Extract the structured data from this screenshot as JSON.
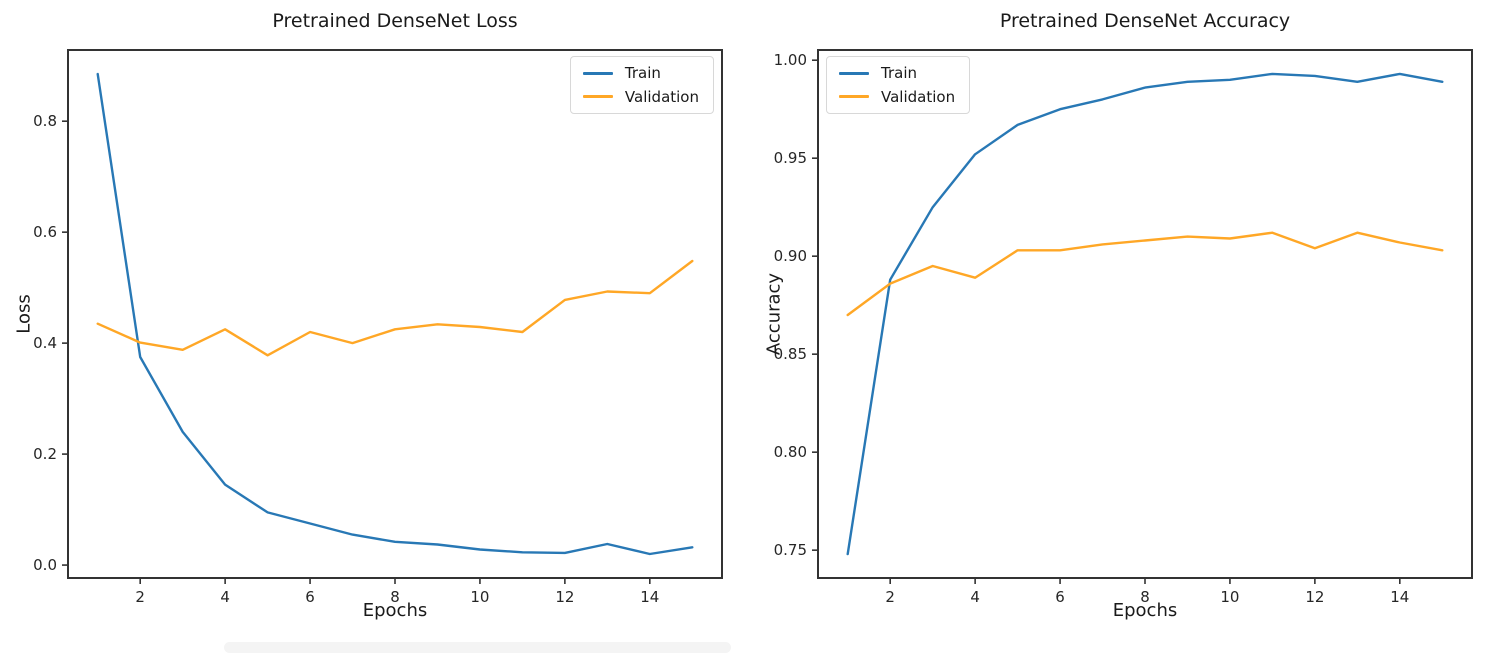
{
  "figure": {
    "background": "#ffffff"
  },
  "colors": {
    "train": "#2878b5",
    "validation": "#ffa726",
    "axis": "#333333",
    "tick_text": "#262626"
  },
  "chart_data": [
    {
      "type": "line",
      "title": "Pretrained DenseNet Loss",
      "xlabel": "Epochs",
      "ylabel": "Loss",
      "grid": false,
      "legend_position": "upper right",
      "x": [
        1,
        2,
        3,
        4,
        5,
        6,
        7,
        8,
        9,
        10,
        11,
        12,
        13,
        14,
        15
      ],
      "series": [
        {
          "name": "Train",
          "color": "#2878b5",
          "values": [
            0.885,
            0.375,
            0.24,
            0.145,
            0.095,
            0.075,
            0.055,
            0.042,
            0.037,
            0.028,
            0.023,
            0.022,
            0.038,
            0.02,
            0.032
          ]
        },
        {
          "name": "Validation",
          "color": "#ffa726",
          "values": [
            0.435,
            0.401,
            0.388,
            0.425,
            0.378,
            0.42,
            0.4,
            0.425,
            0.434,
            0.429,
            0.42,
            0.478,
            0.493,
            0.49,
            0.548
          ]
        }
      ],
      "xlim": [
        0.3,
        15.7
      ],
      "ylim": [
        -0.0233,
        0.9283
      ],
      "xticks": [
        2,
        4,
        6,
        8,
        10,
        12,
        14
      ],
      "xtick_labels": [
        "2",
        "4",
        "6",
        "8",
        "10",
        "12",
        "14"
      ],
      "yticks": [
        0.0,
        0.2,
        0.4,
        0.6,
        0.8
      ],
      "ytick_labels": [
        "0.0",
        "0.2",
        "0.4",
        "0.6",
        "0.8"
      ]
    },
    {
      "type": "line",
      "title": "Pretrained DenseNet Accuracy",
      "xlabel": "Epochs",
      "ylabel": "Accuracy",
      "grid": false,
      "legend_position": "upper left",
      "x": [
        1,
        2,
        3,
        4,
        5,
        6,
        7,
        8,
        9,
        10,
        11,
        12,
        13,
        14,
        15
      ],
      "series": [
        {
          "name": "Train",
          "color": "#2878b5",
          "values": [
            0.748,
            0.888,
            0.925,
            0.952,
            0.967,
            0.975,
            0.98,
            0.986,
            0.989,
            0.99,
            0.993,
            0.992,
            0.989,
            0.993,
            0.989
          ]
        },
        {
          "name": "Validation",
          "color": "#ffa726",
          "values": [
            0.87,
            0.886,
            0.895,
            0.889,
            0.903,
            0.903,
            0.906,
            0.908,
            0.91,
            0.909,
            0.912,
            0.904,
            0.912,
            0.907,
            0.903
          ]
        }
      ],
      "xlim": [
        0.3,
        15.7
      ],
      "ylim": [
        0.7358,
        1.0052
      ],
      "xticks": [
        2,
        4,
        6,
        8,
        10,
        12,
        14
      ],
      "xtick_labels": [
        "2",
        "4",
        "6",
        "8",
        "10",
        "12",
        "14"
      ],
      "yticks": [
        0.75,
        0.8,
        0.85,
        0.9,
        0.95,
        1.0
      ],
      "ytick_labels": [
        "0.75",
        "0.80",
        "0.85",
        "0.90",
        "0.95",
        "1.00"
      ]
    }
  ]
}
